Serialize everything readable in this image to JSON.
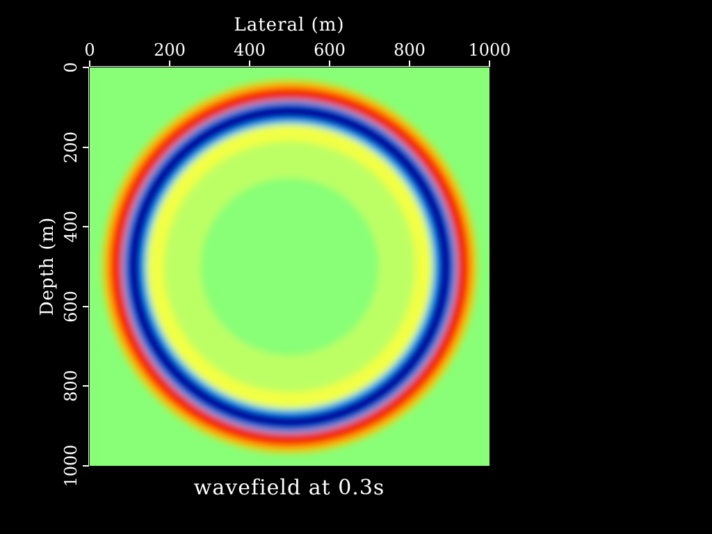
{
  "chart_data": {
    "type": "heatmap",
    "title": "wavefield at 0.3s",
    "xlabel": "Lateral (m)",
    "ylabel": "Depth (m)",
    "xlim": [
      0,
      1000
    ],
    "ylim": [
      0,
      1000
    ],
    "x_axis_position": "top",
    "y_axis_inverted": true,
    "xticks": [
      "0",
      "200",
      "400",
      "600",
      "800",
      "1000"
    ],
    "yticks": [
      "0",
      "200",
      "400",
      "600",
      "800",
      "1000"
    ],
    "xtick_values": [
      0,
      200,
      400,
      600,
      800,
      1000
    ],
    "ytick_values": [
      0,
      200,
      400,
      600,
      800,
      1000
    ],
    "colormap": "jet",
    "background_color": "#88ff77",
    "wavefront": {
      "center_x": 500,
      "center_z": 500,
      "rings": [
        {
          "name": "outer positive lobe",
          "radius": 435,
          "color": "#ff3a00"
        },
        {
          "name": "negative trough",
          "radius": 390,
          "color": "#0010c8"
        },
        {
          "name": "inner positive lobe",
          "radius": 335,
          "color": "#f2ff44"
        }
      ]
    },
    "grid": false,
    "legend": "none"
  }
}
